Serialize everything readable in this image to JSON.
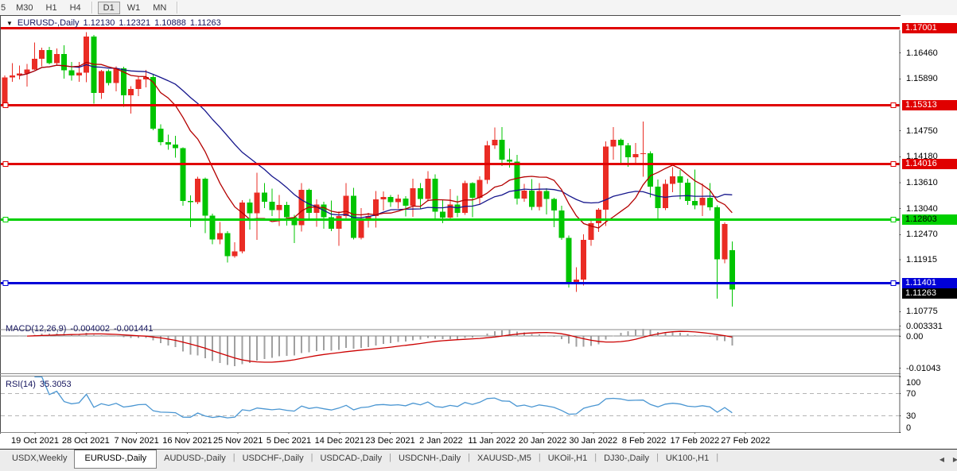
{
  "toolbar": {
    "groups": [
      [
        "5",
        "M30",
        "H1",
        "H4"
      ],
      [
        "D1",
        "W1",
        "MN"
      ]
    ],
    "active": "D1"
  },
  "title": {
    "dropdown_icon": "▼",
    "symbol": "EURUSD-,Daily",
    "open": "1.12130",
    "high": "1.12321",
    "low": "1.10888",
    "close": "1.11263"
  },
  "price_axis": {
    "ticks": [
      {
        "label": "1.16460",
        "price": 1.1646
      },
      {
        "label": "1.15890",
        "price": 1.1589
      },
      {
        "label": "1.14750",
        "price": 1.1475
      },
      {
        "label": "1.14180",
        "price": 1.1418
      },
      {
        "label": "1.13610",
        "price": 1.1361
      },
      {
        "label": "1.13040",
        "price": 1.1304
      },
      {
        "label": "1.12470",
        "price": 1.1247
      },
      {
        "label": "1.11915",
        "price": 1.11915
      },
      {
        "label": "1.10775",
        "price": 1.10775
      }
    ]
  },
  "levels": [
    {
      "label": "1.17001",
      "price": 1.17001,
      "color": "#e00000",
      "text_color": "#ffffff",
      "handles": false
    },
    {
      "label": "1.15313",
      "price": 1.15313,
      "color": "#e00000",
      "text_color": "#ffffff",
      "handles": true
    },
    {
      "label": "1.14016",
      "price": 1.14016,
      "color": "#e00000",
      "text_color": "#ffffff",
      "handles": true
    },
    {
      "label": "1.12803",
      "price": 1.12803,
      "color": "#00d000",
      "text_color": "#000000",
      "handles": true
    },
    {
      "label": "1.11401",
      "price": 1.11401,
      "color": "#0000d8",
      "text_color": "#ffffff",
      "handles": true
    }
  ],
  "current_price": {
    "label": "1.11263",
    "price": 1.11263,
    "bg": "#000000",
    "text_color": "#ffffff"
  },
  "indicators": {
    "macd": {
      "name": "MACD(12,26,9)",
      "value_main": "-0.004002",
      "value_signal": "-0.001441",
      "axis": [
        {
          "label": "0.003331",
          "value": 0.003331
        },
        {
          "label": "0.00",
          "value": 0
        },
        {
          "label": "-0.01043",
          "value": -0.01043
        }
      ],
      "histogram_color": "#a0a0a0",
      "signal_color": "#cc0000"
    },
    "rsi": {
      "name": "RSI(14)",
      "value": "35.3053",
      "axis": [
        {
          "label": "100",
          "value": 100
        },
        {
          "label": "70",
          "value": 70
        },
        {
          "label": "30",
          "value": 30
        },
        {
          "label": "0",
          "value": 0
        }
      ],
      "levels": [
        70,
        30
      ],
      "line_color": "#4a96d2"
    }
  },
  "date_axis": {
    "labels": [
      "19 Oct 2021",
      "28 Oct 2021",
      "7 Nov 2021",
      "16 Nov 2021",
      "25 Nov 2021",
      "5 Dec 2021",
      "14 Dec 2021",
      "23 Dec 2021",
      "2 Jan 2022",
      "11 Jan 2022",
      "20 Jan 2022",
      "30 Jan 2022",
      "8 Feb 2022",
      "17 Feb 2022",
      "27 Feb 2022"
    ]
  },
  "tabs": {
    "items": [
      {
        "label": "USDX,Weekly",
        "active": false
      },
      {
        "label": "EURUSD-,Daily",
        "active": true
      },
      {
        "label": "AUDUSD-,Daily",
        "active": false
      },
      {
        "label": "USDCHF-,Daily",
        "active": false
      },
      {
        "label": "USDCAD-,Daily",
        "active": false
      },
      {
        "label": "USDCNH-,Daily",
        "active": false
      },
      {
        "label": "XAUUSD-,M5",
        "active": false
      },
      {
        "label": "UKOil-,H1",
        "active": false
      },
      {
        "label": "DJ30-,Daily",
        "active": false
      },
      {
        "label": "UK100-,H1",
        "active": false
      }
    ],
    "scroll_left_icon": "◀",
    "scroll_right_icon": "▶"
  },
  "chart_data": {
    "type": "candlestick",
    "symbol": "EURUSD",
    "timeframe": "Daily",
    "up_color": "#ea2c24",
    "down_color": "#00c400",
    "overlays": [
      {
        "name": "ma-fast",
        "period": 10,
        "color": "#b40000"
      },
      {
        "name": "ma-slow",
        "period": 21,
        "color": "#16168c"
      }
    ],
    "candles": [
      [
        "2021-10-13",
        1.1529,
        1.1597,
        1.1525,
        1.1592
      ],
      [
        "2021-10-14",
        1.1592,
        1.1624,
        1.1583,
        1.1597
      ],
      [
        "2021-10-15",
        1.1597,
        1.1618,
        1.1588,
        1.1601
      ],
      [
        "2021-10-18",
        1.1601,
        1.1622,
        1.1572,
        1.161
      ],
      [
        "2021-10-19",
        1.161,
        1.1669,
        1.1609,
        1.1633
      ],
      [
        "2021-10-20",
        1.1633,
        1.1658,
        1.1617,
        1.1652
      ],
      [
        "2021-10-21",
        1.1652,
        1.1659,
        1.1621,
        1.1624
      ],
      [
        "2021-10-22",
        1.1624,
        1.1656,
        1.162,
        1.1644
      ],
      [
        "2021-10-25",
        1.1644,
        1.1663,
        1.159,
        1.1608
      ],
      [
        "2021-10-26",
        1.1608,
        1.1626,
        1.1585,
        1.1597
      ],
      [
        "2021-10-27",
        1.1597,
        1.1626,
        1.1583,
        1.1603
      ],
      [
        "2021-10-28",
        1.1603,
        1.1692,
        1.1582,
        1.1682
      ],
      [
        "2021-10-29",
        1.1682,
        1.1686,
        1.1535,
        1.1558
      ],
      [
        "2021-11-01",
        1.1558,
        1.1609,
        1.1545,
        1.1606
      ],
      [
        "2021-11-02",
        1.1606,
        1.161,
        1.1575,
        1.158
      ],
      [
        "2021-11-03",
        1.158,
        1.1617,
        1.1562,
        1.1612
      ],
      [
        "2021-11-04",
        1.1612,
        1.1616,
        1.1528,
        1.1553
      ],
      [
        "2021-11-05",
        1.1553,
        1.1573,
        1.1513,
        1.1567
      ],
      [
        "2021-11-08",
        1.1567,
        1.1595,
        1.1551,
        1.1588
      ],
      [
        "2021-11-09",
        1.1588,
        1.1609,
        1.157,
        1.1593
      ],
      [
        "2021-11-10",
        1.1593,
        1.1598,
        1.1476,
        1.148
      ],
      [
        "2021-11-11",
        1.148,
        1.1489,
        1.1443,
        1.145
      ],
      [
        "2021-11-12",
        1.145,
        1.1467,
        1.1433,
        1.1445
      ],
      [
        "2021-11-15",
        1.1445,
        1.1464,
        1.1416,
        1.1437
      ],
      [
        "2021-11-16",
        1.1437,
        1.1439,
        1.131,
        1.1321
      ],
      [
        "2021-11-17",
        1.1321,
        1.1333,
        1.1263,
        1.1318
      ],
      [
        "2021-11-18",
        1.1318,
        1.1374,
        1.1314,
        1.137
      ],
      [
        "2021-11-19",
        1.137,
        1.1372,
        1.125,
        1.1289
      ],
      [
        "2021-11-22",
        1.1289,
        1.1293,
        1.1226,
        1.1236
      ],
      [
        "2021-11-23",
        1.1236,
        1.1275,
        1.1226,
        1.125
      ],
      [
        "2021-11-24",
        1.125,
        1.1255,
        1.1186,
        1.12
      ],
      [
        "2021-11-25",
        1.12,
        1.123,
        1.1196,
        1.121
      ],
      [
        "2021-11-26",
        1.121,
        1.1323,
        1.1206,
        1.1317
      ],
      [
        "2021-11-29",
        1.1317,
        1.1325,
        1.1258,
        1.1294
      ],
      [
        "2021-11-30",
        1.1294,
        1.1383,
        1.1235,
        1.1339
      ],
      [
        "2021-12-01",
        1.1339,
        1.136,
        1.1305,
        1.1319
      ],
      [
        "2021-12-02",
        1.1319,
        1.1348,
        1.1288,
        1.1301
      ],
      [
        "2021-12-03",
        1.1301,
        1.1334,
        1.1266,
        1.1312
      ],
      [
        "2021-12-06",
        1.1312,
        1.1319,
        1.1267,
        1.1285
      ],
      [
        "2021-12-07",
        1.1285,
        1.129,
        1.1228,
        1.1268
      ],
      [
        "2021-12-08",
        1.1268,
        1.136,
        1.1254,
        1.1345
      ],
      [
        "2021-12-09",
        1.1345,
        1.1348,
        1.128,
        1.1295
      ],
      [
        "2021-12-10",
        1.1295,
        1.1324,
        1.1264,
        1.1313
      ],
      [
        "2021-12-13",
        1.1313,
        1.1319,
        1.126,
        1.1285
      ],
      [
        "2021-12-14",
        1.1285,
        1.1322,
        1.1255,
        1.126
      ],
      [
        "2021-12-15",
        1.126,
        1.1298,
        1.1222,
        1.1288
      ],
      [
        "2021-12-16",
        1.1288,
        1.136,
        1.128,
        1.1332
      ],
      [
        "2021-12-17",
        1.1332,
        1.135,
        1.1236,
        1.124
      ],
      [
        "2021-12-20",
        1.124,
        1.1305,
        1.1236,
        1.1278
      ],
      [
        "2021-12-21",
        1.1278,
        1.1295,
        1.1262,
        1.1288
      ],
      [
        "2021-12-22",
        1.1288,
        1.1343,
        1.1262,
        1.1324
      ],
      [
        "2021-12-23",
        1.1324,
        1.1342,
        1.13,
        1.133
      ],
      [
        "2021-12-24",
        1.133,
        1.1334,
        1.1308,
        1.1318
      ],
      [
        "2021-12-27",
        1.1318,
        1.1335,
        1.1304,
        1.1326
      ],
      [
        "2021-12-28",
        1.1326,
        1.1331,
        1.1287,
        1.131
      ],
      [
        "2021-12-29",
        1.131,
        1.137,
        1.1286,
        1.1349
      ],
      [
        "2021-12-30",
        1.1349,
        1.136,
        1.1304,
        1.1325
      ],
      [
        "2021-12-31",
        1.1325,
        1.1386,
        1.132,
        1.137
      ],
      [
        "2022-01-03",
        1.137,
        1.1379,
        1.1279,
        1.1297
      ],
      [
        "2022-01-04",
        1.1297,
        1.1323,
        1.1272,
        1.1284
      ],
      [
        "2022-01-05",
        1.1284,
        1.1347,
        1.128,
        1.1313
      ],
      [
        "2022-01-06",
        1.1313,
        1.1332,
        1.1285,
        1.1295
      ],
      [
        "2022-01-07",
        1.1295,
        1.1365,
        1.129,
        1.136
      ],
      [
        "2022-01-10",
        1.136,
        1.1362,
        1.1285,
        1.1328
      ],
      [
        "2022-01-11",
        1.1328,
        1.1375,
        1.1314,
        1.1367
      ],
      [
        "2022-01-12",
        1.1367,
        1.1453,
        1.1358,
        1.1443
      ],
      [
        "2022-01-13",
        1.1443,
        1.1482,
        1.1435,
        1.1455
      ],
      [
        "2022-01-14",
        1.1455,
        1.1483,
        1.1398,
        1.1412
      ],
      [
        "2022-01-17",
        1.1412,
        1.1436,
        1.1394,
        1.1407
      ],
      [
        "2022-01-18",
        1.1407,
        1.1422,
        1.1313,
        1.1326
      ],
      [
        "2022-01-19",
        1.1326,
        1.1358,
        1.1319,
        1.1344
      ],
      [
        "2022-01-20",
        1.1344,
        1.1369,
        1.1301,
        1.1308
      ],
      [
        "2022-01-21",
        1.1308,
        1.136,
        1.13,
        1.1343
      ],
      [
        "2022-01-24",
        1.1343,
        1.1349,
        1.1291,
        1.1325
      ],
      [
        "2022-01-25",
        1.1325,
        1.1328,
        1.1263,
        1.13
      ],
      [
        "2022-01-26",
        1.13,
        1.131,
        1.1235,
        1.124
      ],
      [
        "2022-01-27",
        1.124,
        1.1245,
        1.1131,
        1.1143
      ],
      [
        "2022-01-28",
        1.1143,
        1.1175,
        1.1121,
        1.1148
      ],
      [
        "2022-01-31",
        1.1148,
        1.1248,
        1.1135,
        1.1235
      ],
      [
        "2022-02-01",
        1.1235,
        1.128,
        1.1222,
        1.1272
      ],
      [
        "2022-02-02",
        1.1272,
        1.1305,
        1.1253,
        1.1302
      ],
      [
        "2022-02-03",
        1.1302,
        1.1452,
        1.1266,
        1.144
      ],
      [
        "2022-02-04",
        1.144,
        1.1483,
        1.1412,
        1.1455
      ],
      [
        "2022-02-07",
        1.1455,
        1.1458,
        1.14,
        1.1443
      ],
      [
        "2022-02-08",
        1.1443,
        1.1448,
        1.1396,
        1.1417
      ],
      [
        "2022-02-09",
        1.1417,
        1.1448,
        1.1401,
        1.1424
      ],
      [
        "2022-02-10",
        1.1424,
        1.1495,
        1.1374,
        1.1426
      ],
      [
        "2022-02-11",
        1.1426,
        1.143,
        1.1329,
        1.1352
      ],
      [
        "2022-02-14",
        1.1352,
        1.1368,
        1.1277,
        1.1305
      ],
      [
        "2022-02-15",
        1.1305,
        1.1368,
        1.1301,
        1.1358
      ],
      [
        "2022-02-16",
        1.1358,
        1.1395,
        1.134,
        1.1375
      ],
      [
        "2022-02-17",
        1.1375,
        1.1389,
        1.1324,
        1.1361
      ],
      [
        "2022-02-18",
        1.1361,
        1.137,
        1.1312,
        1.1321
      ],
      [
        "2022-02-21",
        1.1321,
        1.139,
        1.1303,
        1.1311
      ],
      [
        "2022-02-22",
        1.1311,
        1.1359,
        1.1288,
        1.1328
      ],
      [
        "2022-02-23",
        1.1328,
        1.136,
        1.13,
        1.1307
      ],
      [
        "2022-02-24",
        1.1307,
        1.1311,
        1.1106,
        1.1193
      ],
      [
        "2022-02-25",
        1.1193,
        1.1274,
        1.1184,
        1.127
      ],
      [
        "2022-02-28",
        1.1213,
        1.12321,
        1.10888,
        1.11263
      ]
    ]
  }
}
